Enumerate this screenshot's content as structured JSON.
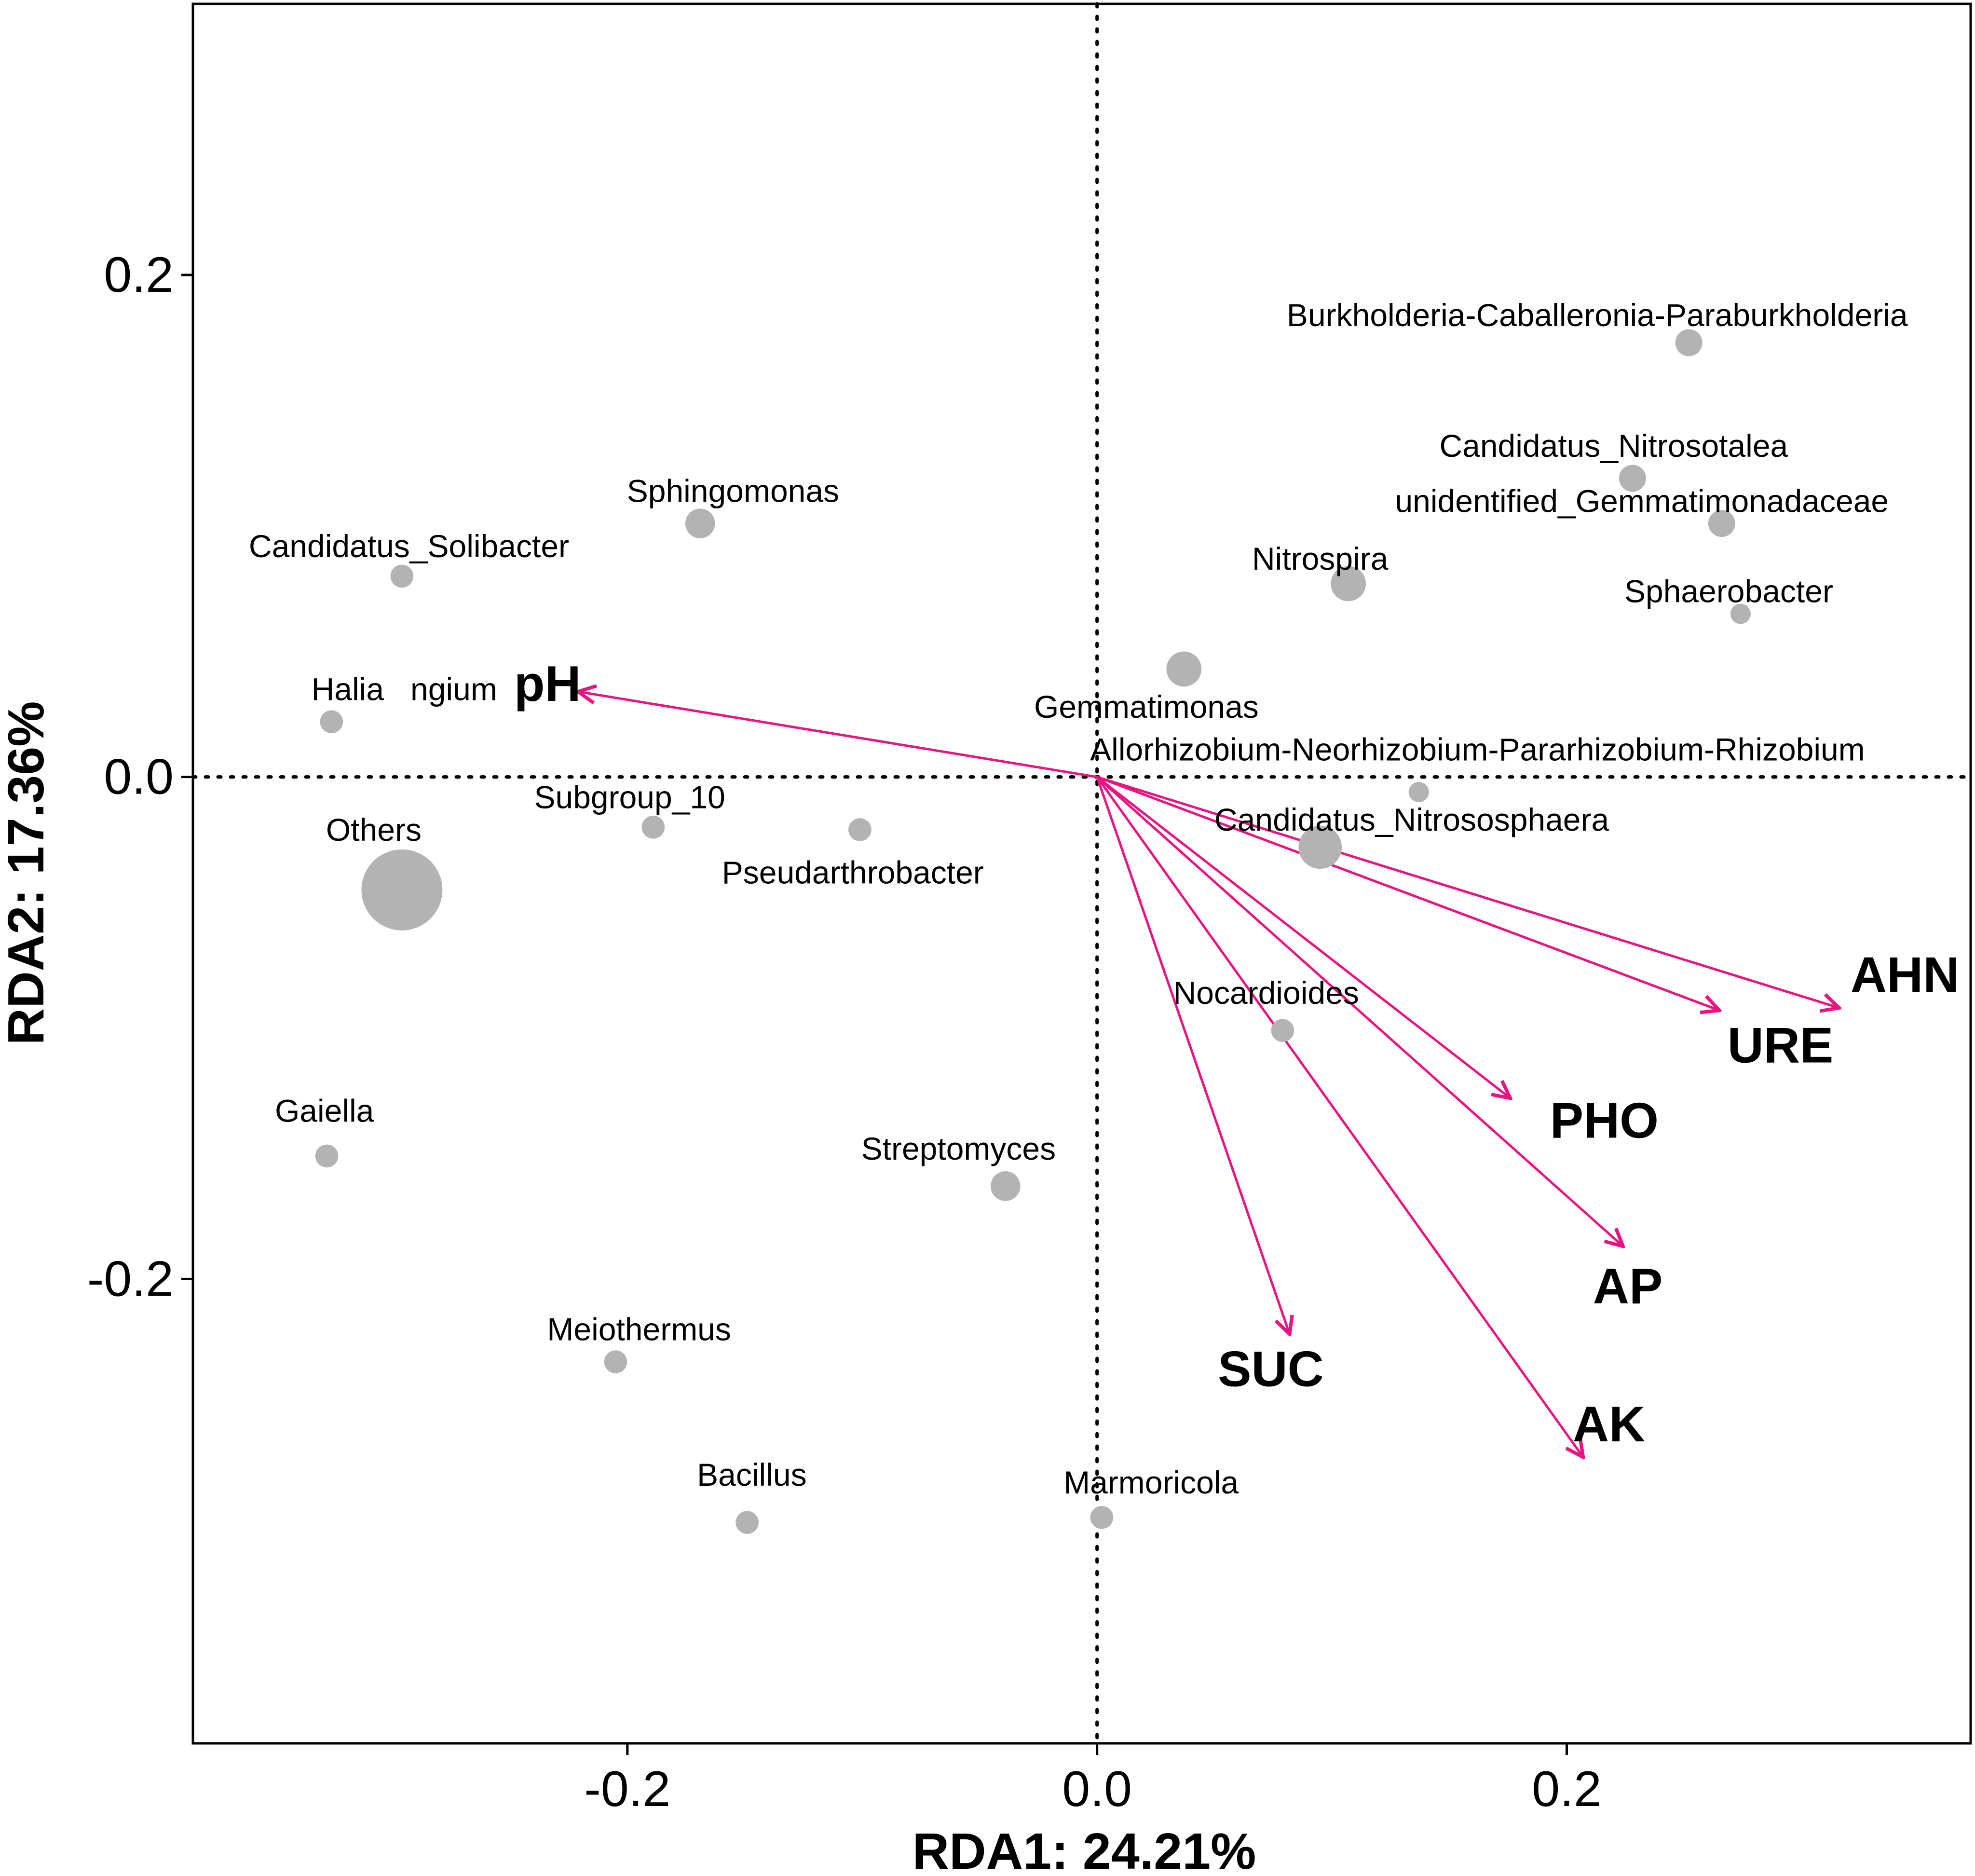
{
  "chart_data": {
    "type": "scatter",
    "subtype": "rda-biplot",
    "title": "",
    "xlabel": "RDA1: 24.21%",
    "ylabel": "RDA2: 17.36%",
    "xlim": [
      -0.385,
      0.372
    ],
    "ylim": [
      -0.385,
      0.308
    ],
    "xticks": [
      -0.2,
      0.0,
      0.2
    ],
    "yticks": [
      -0.2,
      0.0,
      0.2
    ],
    "xtick_labels": [
      "-0.2",
      "0.0",
      "0.2"
    ],
    "ytick_labels": [
      "-0.2",
      "0.0",
      "0.2"
    ],
    "reference_lines": {
      "x": 0.0,
      "y": 0.0,
      "style": "dotted"
    },
    "colors": {
      "point": "#b3b3b3",
      "arrow": "#e8147f",
      "axis": "#000000",
      "background": "#ffffff"
    },
    "genera": [
      {
        "name": "Burkholderia-Caballeronia-Paraburkholderia",
        "x": 0.252,
        "y": 0.173,
        "size": 2,
        "label_x": 0.213,
        "label_y": 0.184
      },
      {
        "name": "Candidatus_Nitrosotalea",
        "x": 0.228,
        "y": 0.119,
        "size": 2,
        "label_x": 0.22,
        "label_y": 0.132
      },
      {
        "name": "unidentified_Gemmatimonadaceae",
        "x": 0.266,
        "y": 0.101,
        "size": 2,
        "label_x": 0.232,
        "label_y": 0.11
      },
      {
        "name": "Nitrospira",
        "x": 0.107,
        "y": 0.077,
        "size": 2.6,
        "label_x": 0.095,
        "label_y": 0.087
      },
      {
        "name": "Sphaerobacter",
        "x": 0.274,
        "y": 0.065,
        "size": 1.5,
        "label_x": 0.269,
        "label_y": 0.074
      },
      {
        "name": "Gemmatimonas",
        "x": 0.037,
        "y": 0.043,
        "size": 2.6,
        "label_x": 0.021,
        "label_y": 0.028
      },
      {
        "name": "Allorhizobium-Neorhizobium-Pararhizobium-Rhizobium",
        "x": 0.137,
        "y": -0.006,
        "size": 1.5,
        "label_x": 0.162,
        "label_y": 0.011
      },
      {
        "name": "Candidatus_Nitrososphaera",
        "x": 0.095,
        "y": -0.028,
        "size": 3.2,
        "label_x": 0.134,
        "label_y": -0.017
      },
      {
        "name": "Nocardioides",
        "x": 0.079,
        "y": -0.101,
        "size": 1.7,
        "label_x": 0.072,
        "label_y": -0.086
      },
      {
        "name": "Streptomyces",
        "x": -0.039,
        "y": -0.163,
        "size": 2.2,
        "label_x": -0.059,
        "label_y": -0.148
      },
      {
        "name": "Sphingomonas",
        "x": -0.169,
        "y": 0.101,
        "size": 2.2,
        "label_x": -0.155,
        "label_y": 0.114
      },
      {
        "name": "Candidatus_Solibacter",
        "x": -0.296,
        "y": 0.08,
        "size": 1.7,
        "label_x": -0.293,
        "label_y": 0.092
      },
      {
        "name": "Halia   ngium",
        "x": -0.326,
        "y": 0.022,
        "size": 1.7,
        "label_x": -0.295,
        "label_y": 0.035
      },
      {
        "name": "Subgroup_10",
        "x": -0.189,
        "y": -0.02,
        "size": 1.7,
        "label_x": -0.199,
        "label_y": -0.008
      },
      {
        "name": "Pseudarthrobacter",
        "x": -0.101,
        "y": -0.021,
        "size": 1.7,
        "label_x": -0.104,
        "label_y": -0.038
      },
      {
        "name": "Others",
        "x": -0.296,
        "y": -0.045,
        "size": 6,
        "label_x": -0.308,
        "label_y": -0.021
      },
      {
        "name": "Gaiella",
        "x": -0.328,
        "y": -0.151,
        "size": 1.7,
        "label_x": -0.329,
        "label_y": -0.133
      },
      {
        "name": "Meiothermus",
        "x": -0.205,
        "y": -0.233,
        "size": 1.7,
        "label_x": -0.195,
        "label_y": -0.22
      },
      {
        "name": "Bacillus",
        "x": -0.149,
        "y": -0.297,
        "size": 1.7,
        "label_x": -0.147,
        "label_y": -0.278
      },
      {
        "name": "Marmoricola",
        "x": 0.002,
        "y": -0.295,
        "size": 1.7,
        "label_x": 0.023,
        "label_y": -0.281
      }
    ],
    "env_vectors": [
      {
        "name": "pH",
        "x": -0.221,
        "y": 0.034,
        "label_x": -0.234,
        "label_y": 0.037
      },
      {
        "name": "AHN",
        "x": 0.316,
        "y": -0.092,
        "label_x": 0.344,
        "label_y": -0.079
      },
      {
        "name": "URE",
        "x": 0.265,
        "y": -0.093,
        "label_x": 0.291,
        "label_y": -0.107
      },
      {
        "name": "PHO",
        "x": 0.176,
        "y": -0.128,
        "label_x": 0.216,
        "label_y": -0.137
      },
      {
        "name": "AP",
        "x": 0.224,
        "y": -0.187,
        "label_x": 0.226,
        "label_y": -0.203
      },
      {
        "name": "SUC",
        "x": 0.082,
        "y": -0.222,
        "label_x": 0.074,
        "label_y": -0.236
      },
      {
        "name": "AK",
        "x": 0.207,
        "y": -0.271,
        "label_x": 0.218,
        "label_y": -0.258
      }
    ]
  }
}
